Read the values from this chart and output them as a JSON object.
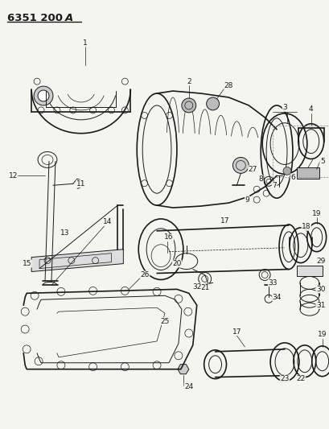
{
  "title_parts": [
    "6351",
    " 200",
    "A"
  ],
  "title_bold": true,
  "bg_color": "#f5f5f0",
  "line_color": "#1a1a1a",
  "fig_width": 4.1,
  "fig_height": 5.33,
  "dpi": 100,
  "underline_title": true
}
